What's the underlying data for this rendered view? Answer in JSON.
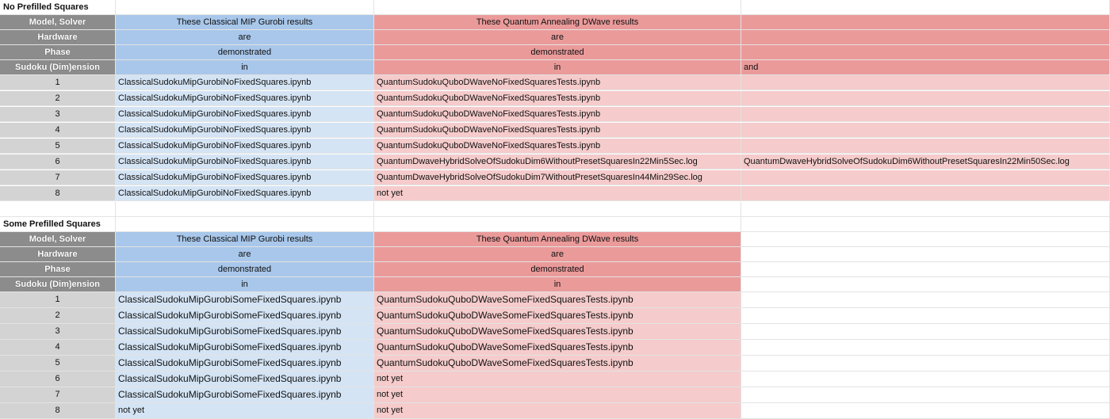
{
  "colors": {
    "header_gray": "#8c8c8c",
    "index_gray": "#d3d3d3",
    "blue_header": "#a8c7ea",
    "blue_light": "#d4e4f4",
    "red_header": "#eb9a9a",
    "red_light": "#f5cbcb"
  },
  "section1": {
    "title": "No Prefilled Squares",
    "header": {
      "col0": [
        "Model, Solver",
        "Hardware",
        "Phase",
        "Sudoku (Dim)ension"
      ],
      "col1": [
        "These Classical MIP Gurobi results",
        "are",
        "demonstrated",
        "in"
      ],
      "col2": [
        "These Quantum Annealing DWave results",
        "are",
        "demonstrated",
        "in"
      ],
      "col3": [
        "",
        "",
        "",
        "and"
      ]
    },
    "rows": [
      {
        "dim": "1",
        "classical": "ClassicalSudokuMipGurobiNoFixedSquares.ipynb",
        "quantum": "QuantumSudokuQuboDWaveNoFixedSquaresTests.ipynb",
        "extra": ""
      },
      {
        "dim": "2",
        "classical": "ClassicalSudokuMipGurobiNoFixedSquares.ipynb",
        "quantum": "QuantumSudokuQuboDWaveNoFixedSquaresTests.ipynb",
        "extra": ""
      },
      {
        "dim": "3",
        "classical": "ClassicalSudokuMipGurobiNoFixedSquares.ipynb",
        "quantum": "QuantumSudokuQuboDWaveNoFixedSquaresTests.ipynb",
        "extra": ""
      },
      {
        "dim": "4",
        "classical": "ClassicalSudokuMipGurobiNoFixedSquares.ipynb",
        "quantum": "QuantumSudokuQuboDWaveNoFixedSquaresTests.ipynb",
        "extra": ""
      },
      {
        "dim": "5",
        "classical": "ClassicalSudokuMipGurobiNoFixedSquares.ipynb",
        "quantum": "QuantumSudokuQuboDWaveNoFixedSquaresTests.ipynb",
        "extra": ""
      },
      {
        "dim": "6",
        "classical": "ClassicalSudokuMipGurobiNoFixedSquares.ipynb",
        "quantum": "QuantumDwaveHybridSolveOfSudokuDim6WithoutPresetSquaresIn22Min5Sec.log",
        "extra": "QuantumDwaveHybridSolveOfSudokuDim6WithoutPresetSquaresIn22Min50Sec.log"
      },
      {
        "dim": "7",
        "classical": "ClassicalSudokuMipGurobiNoFixedSquares.ipynb",
        "quantum": "QuantumDwaveHybridSolveOfSudokuDim7WithoutPresetSquaresIn44Min29Sec.log",
        "extra": ""
      },
      {
        "dim": "8",
        "classical": "ClassicalSudokuMipGurobiNoFixedSquares.ipynb",
        "quantum": "not yet",
        "extra": ""
      }
    ]
  },
  "section2": {
    "title": "Some Prefilled Squares",
    "header": {
      "col0": [
        "Model, Solver",
        "Hardware",
        "Phase",
        "Sudoku (Dim)ension"
      ],
      "col1": [
        "These Classical MIP Gurobi results",
        "are",
        "demonstrated",
        "in"
      ],
      "col2": [
        "These Quantum Annealing DWave results",
        "are",
        "demonstrated",
        "in"
      ]
    },
    "rows": [
      {
        "dim": "1",
        "classical": "ClassicalSudokuMipGurobiSomeFixedSquares.ipynb",
        "quantum": "QuantumSudokuQuboDWaveSomeFixedSquaresTests.ipynb"
      },
      {
        "dim": "2",
        "classical": "ClassicalSudokuMipGurobiSomeFixedSquares.ipynb",
        "quantum": "QuantumSudokuQuboDWaveSomeFixedSquaresTests.ipynb"
      },
      {
        "dim": "3",
        "classical": "ClassicalSudokuMipGurobiSomeFixedSquares.ipynb",
        "quantum": "QuantumSudokuQuboDWaveSomeFixedSquaresTests.ipynb"
      },
      {
        "dim": "4",
        "classical": "ClassicalSudokuMipGurobiSomeFixedSquares.ipynb",
        "quantum": "QuantumSudokuQuboDWaveSomeFixedSquaresTests.ipynb"
      },
      {
        "dim": "5",
        "classical": "ClassicalSudokuMipGurobiSomeFixedSquares.ipynb",
        "quantum": "QuantumSudokuQuboDWaveSomeFixedSquaresTests.ipynb"
      },
      {
        "dim": "6",
        "classical": "ClassicalSudokuMipGurobiSomeFixedSquares.ipynb",
        "quantum": "not yet"
      },
      {
        "dim": "7",
        "classical": "ClassicalSudokuMipGurobiSomeFixedSquares.ipynb",
        "quantum": "not yet"
      },
      {
        "dim": "8",
        "classical": "not yet",
        "quantum": "not yet"
      }
    ]
  }
}
